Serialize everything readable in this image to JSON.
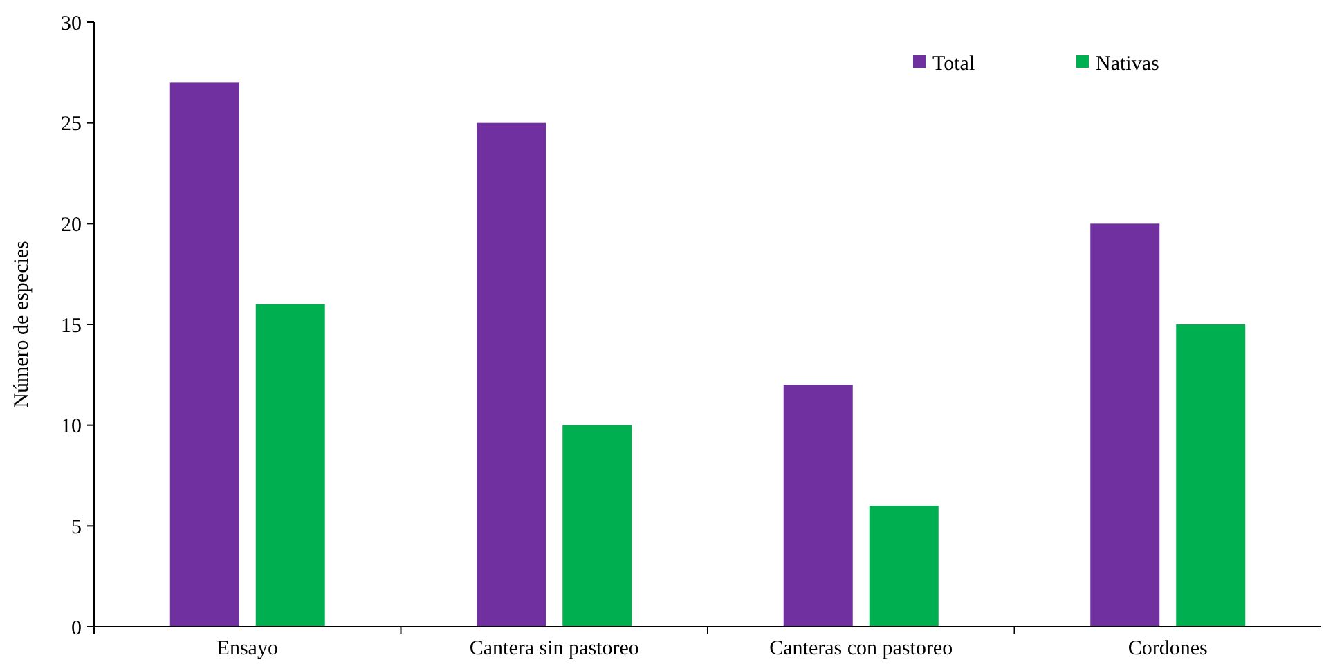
{
  "chart_data": {
    "type": "bar",
    "ylabel": "Número de especies",
    "categories": [
      "Ensayo",
      "Cantera sin pastoreo",
      "Canteras con pastoreo",
      "Cordones"
    ],
    "series": [
      {
        "name": "Total",
        "color": "#7030a0",
        "values": [
          27,
          25,
          12,
          20
        ]
      },
      {
        "name": "Nativas",
        "color": "#00b050",
        "values": [
          16,
          10,
          6,
          15
        ]
      }
    ],
    "ylim": [
      0,
      30
    ],
    "yticks": [
      0,
      5,
      10,
      15,
      20,
      25,
      30
    ],
    "grid": false,
    "legend": "top right"
  }
}
